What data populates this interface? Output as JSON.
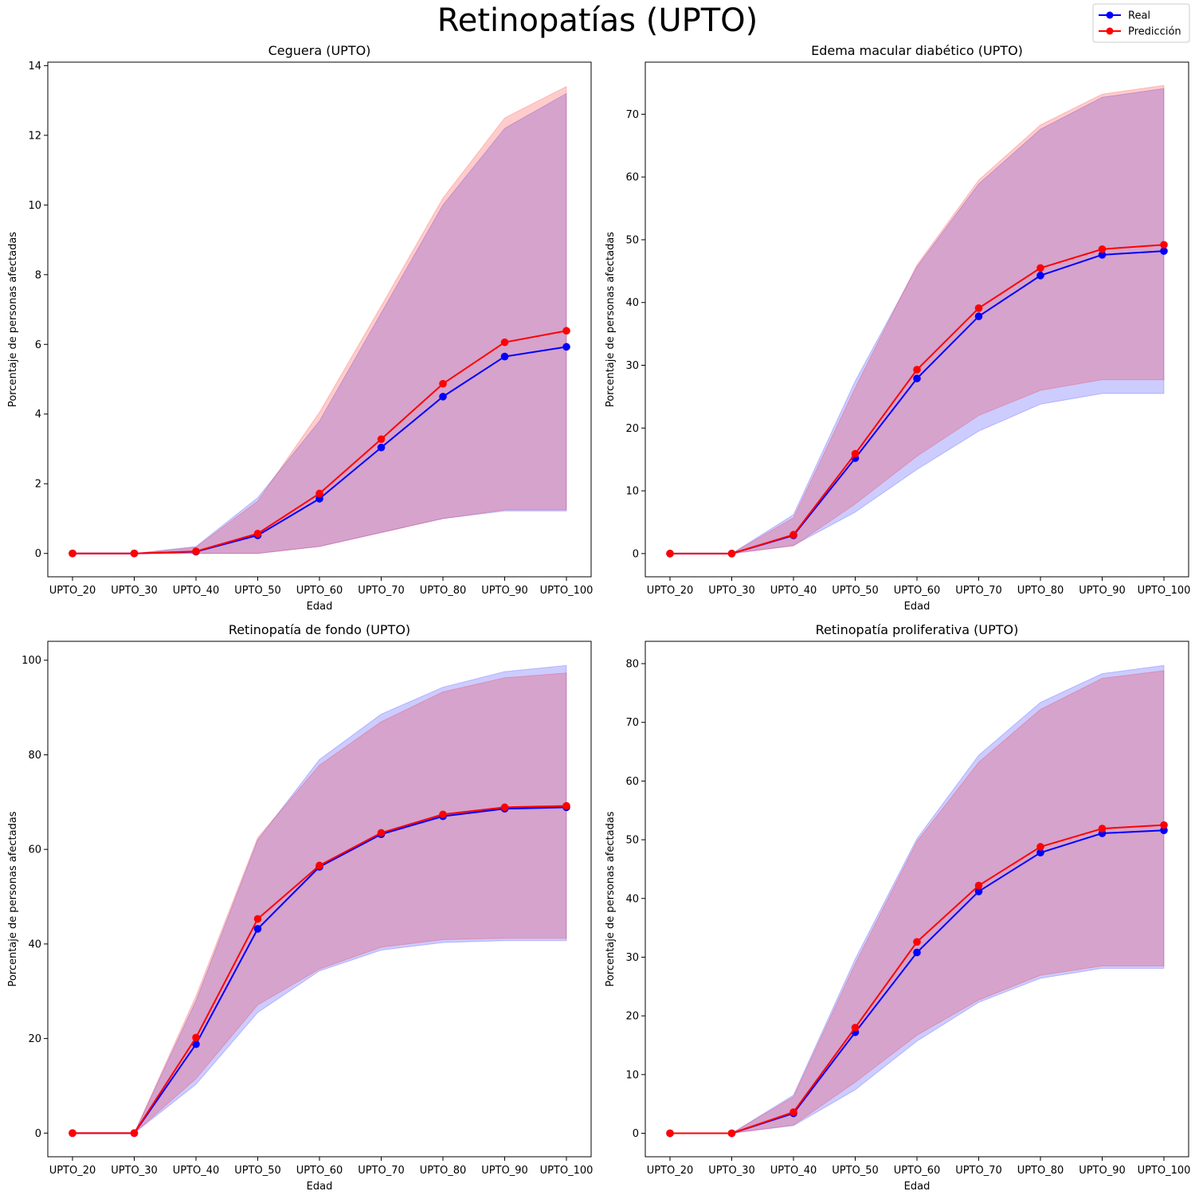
{
  "figure": {
    "title": "Retinopatías (UPTO)",
    "legend": {
      "placement": "top-right",
      "entries": [
        {
          "label": "Real",
          "color": "#0000ff"
        },
        {
          "label": "Predicción",
          "color": "#ff0000"
        }
      ]
    }
  },
  "colors": {
    "real_line": "#0000ff",
    "pred_line": "#ff0000",
    "real_band": "#0000ff",
    "pred_band": "#ff0000"
  },
  "chart_data": [
    {
      "type": "line",
      "title": "Ceguera (UPTO)",
      "xlabel": "Edad",
      "ylabel": "Porcentaje de personas afectadas",
      "categories": [
        "UPTO_20",
        "UPTO_30",
        "UPTO_40",
        "UPTO_50",
        "UPTO_60",
        "UPTO_70",
        "UPTO_80",
        "UPTO_90",
        "UPTO_100"
      ],
      "ylim": [
        -0.67,
        14.1
      ],
      "yticks": [
        0,
        2,
        4,
        6,
        8,
        10,
        12,
        14
      ],
      "series": [
        {
          "name": "Real",
          "color": "#0000ff",
          "values": [
            0,
            0,
            0.05,
            0.52,
            1.57,
            3.04,
            4.5,
            5.65,
            5.93
          ],
          "band_lower": [
            0,
            0,
            0,
            0,
            0.2,
            0.6,
            1.0,
            1.22,
            1.22
          ],
          "band_upper": [
            0,
            0,
            0.2,
            1.6,
            3.8,
            6.9,
            10.0,
            12.2,
            13.2
          ]
        },
        {
          "name": "Predicción",
          "color": "#ff0000",
          "values": [
            0,
            0,
            0.06,
            0.57,
            1.72,
            3.28,
            4.87,
            6.06,
            6.39
          ],
          "band_lower": [
            0,
            0,
            0,
            0,
            0.2,
            0.6,
            1.0,
            1.25,
            1.25
          ],
          "band_upper": [
            0,
            0,
            0.18,
            1.5,
            4.05,
            7.1,
            10.2,
            12.5,
            13.4
          ]
        }
      ]
    },
    {
      "type": "line",
      "title": "Edema macular diabético (UPTO)",
      "xlabel": "Edad",
      "ylabel": "Porcentaje de personas afectadas",
      "categories": [
        "UPTO_20",
        "UPTO_30",
        "UPTO_40",
        "UPTO_50",
        "UPTO_60",
        "UPTO_70",
        "UPTO_80",
        "UPTO_90",
        "UPTO_100"
      ],
      "ylim": [
        -3.7,
        78.3
      ],
      "yticks": [
        0,
        10,
        20,
        30,
        40,
        50,
        60,
        70
      ],
      "series": [
        {
          "name": "Real",
          "color": "#0000ff",
          "values": [
            0,
            0,
            2.9,
            15.2,
            27.9,
            37.8,
            44.3,
            47.6,
            48.2
          ],
          "band_lower": [
            0,
            0,
            1.3,
            6.6,
            13.4,
            19.5,
            23.8,
            25.5,
            25.5
          ],
          "band_upper": [
            0,
            0,
            6.2,
            27.5,
            45.7,
            58.9,
            67.6,
            72.7,
            74.1
          ]
        },
        {
          "name": "Predicción",
          "color": "#ff0000",
          "values": [
            0,
            0,
            3.0,
            15.9,
            29.3,
            39.1,
            45.5,
            48.5,
            49.2
          ],
          "band_lower": [
            0,
            0,
            1.2,
            7.9,
            15.5,
            22.0,
            26.0,
            27.7,
            27.7
          ],
          "band_upper": [
            0,
            0,
            5.7,
            26.4,
            46.0,
            59.5,
            68.3,
            73.2,
            74.6
          ]
        }
      ]
    },
    {
      "type": "line",
      "title": "Retinopatía de fondo (UPTO)",
      "xlabel": "Edad",
      "ylabel": "Porcentaje de personas afectadas",
      "categories": [
        "UPTO_20",
        "UPTO_30",
        "UPTO_40",
        "UPTO_50",
        "UPTO_60",
        "UPTO_70",
        "UPTO_80",
        "UPTO_90",
        "UPTO_100"
      ],
      "ylim": [
        -5,
        104
      ],
      "yticks": [
        0,
        20,
        40,
        60,
        80,
        100
      ],
      "series": [
        {
          "name": "Real",
          "color": "#0000ff",
          "values": [
            0,
            0,
            18.8,
            43.2,
            56.3,
            63.2,
            67.0,
            68.6,
            68.9
          ],
          "band_lower": [
            0,
            0,
            10.3,
            25.5,
            34.3,
            38.7,
            40.3,
            40.7,
            40.7
          ],
          "band_upper": [
            0,
            0,
            28.0,
            62.0,
            79.0,
            88.6,
            94.3,
            97.6,
            98.9
          ]
        },
        {
          "name": "Predicción",
          "color": "#ff0000",
          "values": [
            0,
            0,
            20.2,
            45.3,
            56.6,
            63.5,
            67.4,
            68.9,
            69.2
          ],
          "band_lower": [
            0,
            0,
            11.5,
            27.1,
            34.7,
            39.3,
            40.9,
            41.2,
            41.2
          ],
          "band_upper": [
            0,
            0,
            29.0,
            62.5,
            77.8,
            87.0,
            93.3,
            96.3,
            97.3
          ]
        }
      ]
    },
    {
      "type": "line",
      "title": "Retinopatía proliferativa (UPTO)",
      "xlabel": "Edad",
      "ylabel": "Porcentaje de personas afectadas",
      "categories": [
        "UPTO_20",
        "UPTO_30",
        "UPTO_40",
        "UPTO_50",
        "UPTO_60",
        "UPTO_70",
        "UPTO_80",
        "UPTO_90",
        "UPTO_100"
      ],
      "ylim": [
        -4,
        83.8
      ],
      "yticks": [
        0,
        10,
        20,
        30,
        40,
        50,
        60,
        70,
        80
      ],
      "series": [
        {
          "name": "Real",
          "color": "#0000ff",
          "values": [
            0,
            0,
            3.4,
            17.2,
            30.8,
            41.2,
            47.8,
            51.1,
            51.6
          ],
          "band_lower": [
            0,
            0,
            1.3,
            7.4,
            15.7,
            22.3,
            26.4,
            28.1,
            28.1
          ],
          "band_upper": [
            0,
            0,
            6.5,
            29.7,
            50.2,
            64.4,
            73.4,
            78.3,
            79.7
          ]
        },
        {
          "name": "Predicción",
          "color": "#ff0000",
          "values": [
            0,
            0,
            3.6,
            18.0,
            32.6,
            42.2,
            48.8,
            51.9,
            52.5
          ],
          "band_lower": [
            0,
            0,
            1.4,
            8.7,
            16.7,
            22.7,
            26.9,
            28.5,
            28.5
          ],
          "band_upper": [
            0,
            0,
            6.2,
            28.9,
            49.7,
            63.2,
            72.2,
            77.5,
            78.8
          ]
        }
      ]
    }
  ]
}
